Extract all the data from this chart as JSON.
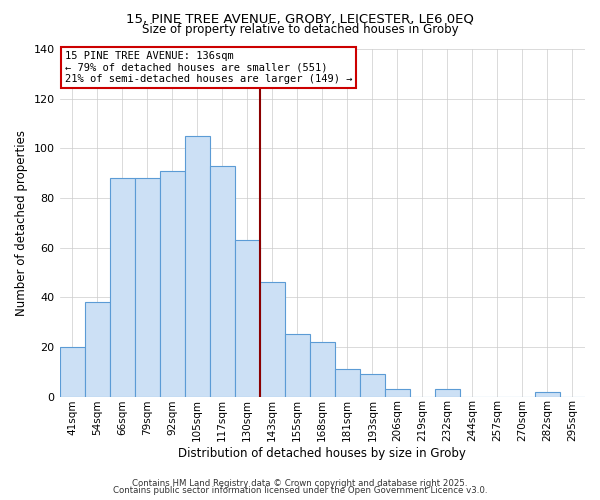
{
  "title_line1": "15, PINE TREE AVENUE, GROBY, LEICESTER, LE6 0EQ",
  "title_line2": "Size of property relative to detached houses in Groby",
  "xlabel": "Distribution of detached houses by size in Groby",
  "ylabel": "Number of detached properties",
  "bar_labels": [
    "41sqm",
    "54sqm",
    "66sqm",
    "79sqm",
    "92sqm",
    "105sqm",
    "117sqm",
    "130sqm",
    "143sqm",
    "155sqm",
    "168sqm",
    "181sqm",
    "193sqm",
    "206sqm",
    "219sqm",
    "232sqm",
    "244sqm",
    "257sqm",
    "270sqm",
    "282sqm",
    "295sqm"
  ],
  "bar_values": [
    20,
    38,
    88,
    88,
    91,
    105,
    93,
    63,
    46,
    25,
    22,
    11,
    9,
    3,
    0,
    3,
    0,
    0,
    0,
    2,
    0
  ],
  "bar_color": "#cce0f5",
  "bar_edgecolor": "#5b9bd5",
  "vline_color": "#8b0000",
  "annotation_title": "15 PINE TREE AVENUE: 136sqm",
  "annotation_line1": "← 79% of detached houses are smaller (551)",
  "annotation_line2": "21% of semi-detached houses are larger (149) →",
  "annotation_box_edgecolor": "#cc0000",
  "ylim": [
    0,
    140
  ],
  "yticks": [
    0,
    20,
    40,
    60,
    80,
    100,
    120,
    140
  ],
  "footer_line1": "Contains HM Land Registry data © Crown copyright and database right 2025.",
  "footer_line2": "Contains public sector information licensed under the Open Government Licence v3.0.",
  "background_color": "#ffffff",
  "grid_color": "#cccccc"
}
